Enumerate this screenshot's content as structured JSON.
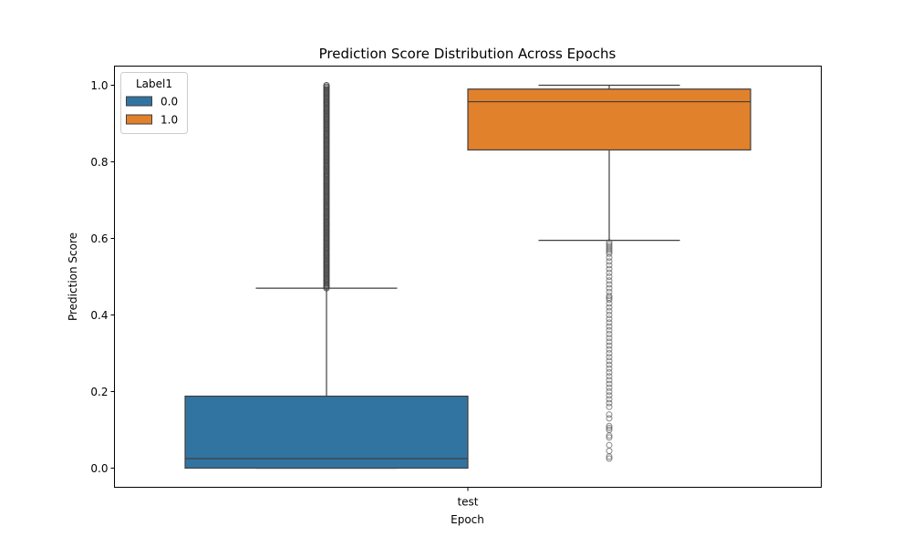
{
  "chart_data": {
    "type": "box",
    "title": "Prediction Score Distribution Across Epochs",
    "xlabel": "Epoch",
    "ylabel": "Prediction Score",
    "categories": [
      "test"
    ],
    "ylim": [
      -0.05,
      1.05
    ],
    "yticks": [
      0.0,
      0.2,
      0.4,
      0.6,
      0.8,
      1.0
    ],
    "ytick_labels": [
      "0.0",
      "0.2",
      "0.4",
      "0.6",
      "0.8",
      "1.0"
    ],
    "grid": false,
    "legend": {
      "title": "Label1",
      "placement": "top-left"
    },
    "series": [
      {
        "name": "0.0",
        "color": "#3274a1",
        "category": "test",
        "whisker_low": 0.0,
        "q1": 0.0,
        "median": 0.025,
        "q3": 0.188,
        "whisker_high": 0.47,
        "outlier_range": [
          0.47,
          1.0
        ]
      },
      {
        "name": "1.0",
        "color": "#e1812c",
        "category": "test",
        "whisker_low": 0.595,
        "q1": 0.831,
        "median": 0.957,
        "q3": 0.99,
        "whisker_high": 1.0,
        "outliers": [
          0.59,
          0.585,
          0.58,
          0.575,
          0.57,
          0.565,
          0.56,
          0.55,
          0.54,
          0.53,
          0.52,
          0.51,
          0.5,
          0.49,
          0.48,
          0.47,
          0.46,
          0.45,
          0.445,
          0.44,
          0.43,
          0.42,
          0.41,
          0.4,
          0.39,
          0.38,
          0.37,
          0.36,
          0.35,
          0.34,
          0.33,
          0.32,
          0.31,
          0.3,
          0.29,
          0.28,
          0.27,
          0.26,
          0.25,
          0.24,
          0.23,
          0.22,
          0.21,
          0.2,
          0.19,
          0.18,
          0.17,
          0.16,
          0.14,
          0.13,
          0.11,
          0.105,
          0.1,
          0.085,
          0.08,
          0.06,
          0.045,
          0.03,
          0.025
        ]
      }
    ]
  }
}
